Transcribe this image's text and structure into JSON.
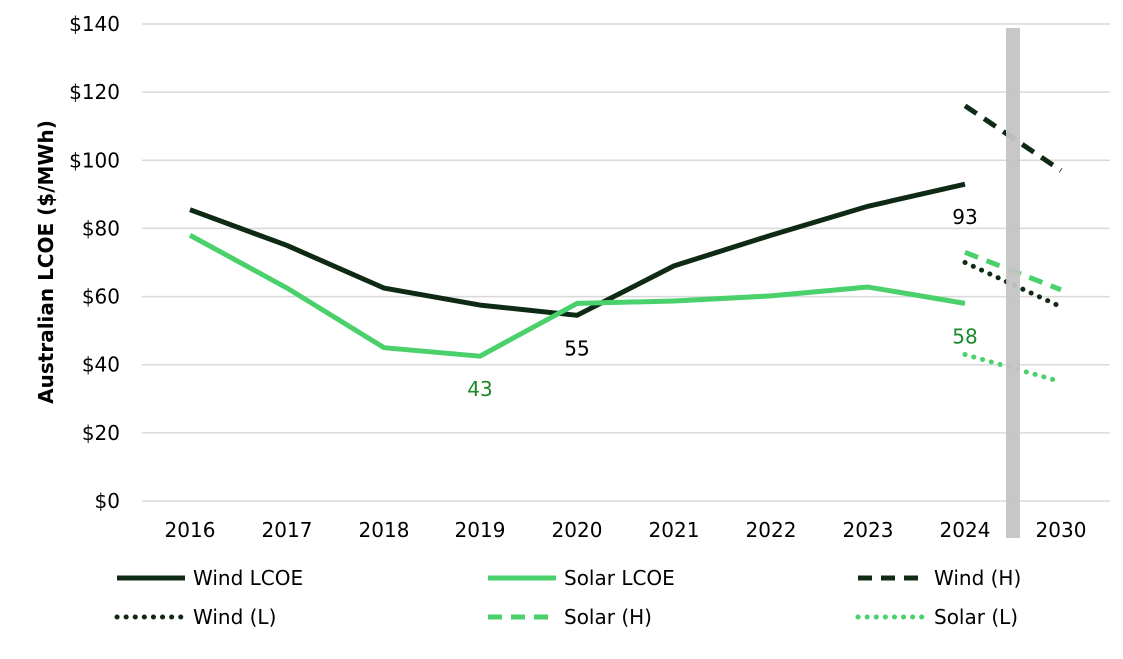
{
  "chart_data": {
    "type": "line",
    "title": "",
    "xlabel": "",
    "ylabel": "Australian LCOE ($/MWh)",
    "ylim": [
      0,
      140
    ],
    "ytick_step": 20,
    "ytick_labels": [
      "$0",
      "$20",
      "$40",
      "$60",
      "$80",
      "$100",
      "$120",
      "$140"
    ],
    "categories": [
      "2016",
      "2017",
      "2018",
      "2019",
      "2020",
      "2021",
      "2022",
      "2023",
      "2024",
      "2030"
    ],
    "grid": "horizontal",
    "legend_position": "bottom",
    "colors": {
      "wind": "#0f2a14",
      "solar": "#4ad16c",
      "solar_label": "#1a8a2a",
      "grid": "#d9d9d9",
      "separator": "#c4c4c4"
    },
    "series": [
      {
        "name": "Wind LCOE",
        "key": "wind_lcoe",
        "color": "#0f2a14",
        "style": "solid",
        "points": [
          [
            "2016",
            85.5
          ],
          [
            "2017",
            75
          ],
          [
            "2018",
            62.5
          ],
          [
            "2019",
            57.5
          ],
          [
            "2020",
            54.5
          ],
          [
            "2021",
            69
          ],
          [
            "2022",
            78
          ],
          [
            "2023",
            86.5
          ],
          [
            "2024",
            93
          ]
        ]
      },
      {
        "name": "Solar LCOE",
        "key": "solar_lcoe",
        "color": "#4ad16c",
        "style": "solid",
        "points": [
          [
            "2016",
            78
          ],
          [
            "2017",
            62.5
          ],
          [
            "2018",
            45
          ],
          [
            "2019",
            42.5
          ],
          [
            "2020",
            58
          ],
          [
            "2021",
            58.7
          ],
          [
            "2022",
            60.2
          ],
          [
            "2023",
            62.8
          ],
          [
            "2024",
            58
          ]
        ]
      },
      {
        "name": "Wind (H)",
        "key": "wind_h",
        "color": "#0f2a14",
        "style": "dashed",
        "points": [
          [
            "2024",
            116
          ],
          [
            "2030",
            97
          ]
        ]
      },
      {
        "name": "Wind (L)",
        "key": "wind_l",
        "color": "#0f2a14",
        "style": "dotted",
        "points": [
          [
            "2024",
            70
          ],
          [
            "2030",
            57
          ]
        ]
      },
      {
        "name": "Solar (H)",
        "key": "solar_h",
        "color": "#4ad16c",
        "style": "dashed",
        "points": [
          [
            "2024",
            73
          ],
          [
            "2030",
            62
          ]
        ]
      },
      {
        "name": "Solar (L)",
        "key": "solar_l",
        "color": "#4ad16c",
        "style": "dotted",
        "points": [
          [
            "2024",
            43
          ],
          [
            "2030",
            35
          ]
        ]
      }
    ],
    "annotations": [
      {
        "text": "43",
        "category": "2019",
        "value": 42.5,
        "series": "solar_lcoe",
        "place": "below"
      },
      {
        "text": "55",
        "category": "2020",
        "value": 54.5,
        "series": "wind_lcoe",
        "place": "below"
      },
      {
        "text": "93",
        "category": "2024",
        "value": 93,
        "series": "wind_lcoe",
        "place": "below"
      },
      {
        "text": "58",
        "category": "2024",
        "value": 58,
        "series": "solar_lcoe",
        "place": "below"
      }
    ],
    "separator_between": [
      "2024",
      "2030"
    ]
  }
}
